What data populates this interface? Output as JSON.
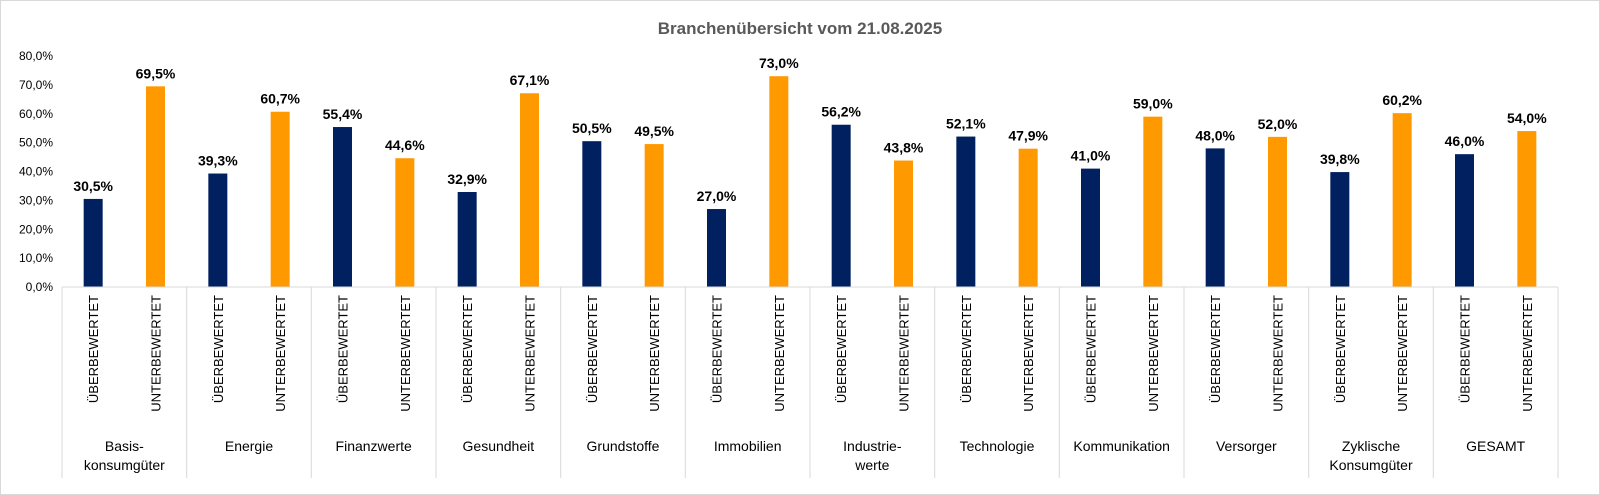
{
  "chart_data": {
    "type": "bar",
    "title": "Branchenübersicht vom 21.08.2025",
    "xlabel": "",
    "ylabel": "",
    "ylim": [
      0,
      80
    ],
    "ytick_labels": [
      "0,0%",
      "10,0%",
      "20,0%",
      "30,0%",
      "40,0%",
      "50,0%",
      "60,0%",
      "70,0%",
      "80,0%"
    ],
    "grid": false,
    "legend": "none",
    "categories": [
      [
        "Basis-",
        "konsumgüter"
      ],
      [
        "Energie"
      ],
      [
        "Finanzwerte"
      ],
      [
        "Gesundheit"
      ],
      [
        "Grundstoffe"
      ],
      [
        "Immobilien"
      ],
      [
        "Industrie-",
        "werte"
      ],
      [
        "Technologie"
      ],
      [
        "Kommunikation"
      ],
      [
        "Versorger"
      ],
      [
        "Zyklische",
        "Konsumgüter"
      ],
      [
        "GESAMT"
      ]
    ],
    "subcategories": [
      "ÜBERBEWERTET",
      "UNTERBEWERTET"
    ],
    "series": [
      {
        "color": "#002060",
        "values": [
          30.5,
          39.3,
          55.4,
          32.9,
          50.5,
          27.0,
          56.2,
          52.1,
          41.0,
          48.0,
          39.8,
          46.0
        ],
        "labels": [
          "30,5%",
          "39,3%",
          "55,4%",
          "32,9%",
          "50,5%",
          "27,0%",
          "56,2%",
          "52,1%",
          "41,0%",
          "48,0%",
          "39,8%",
          "46,0%"
        ]
      },
      {
        "color": "#FF9900",
        "values": [
          69.5,
          60.7,
          44.6,
          67.1,
          49.5,
          73.0,
          43.8,
          47.9,
          59.0,
          52.0,
          60.2,
          54.0
        ],
        "labels": [
          "69,5%",
          "60,7%",
          "44,6%",
          "67,1%",
          "49,5%",
          "73,0%",
          "43,8%",
          "47,9%",
          "59,0%",
          "52,0%",
          "60,2%",
          "54,0%"
        ]
      }
    ]
  }
}
